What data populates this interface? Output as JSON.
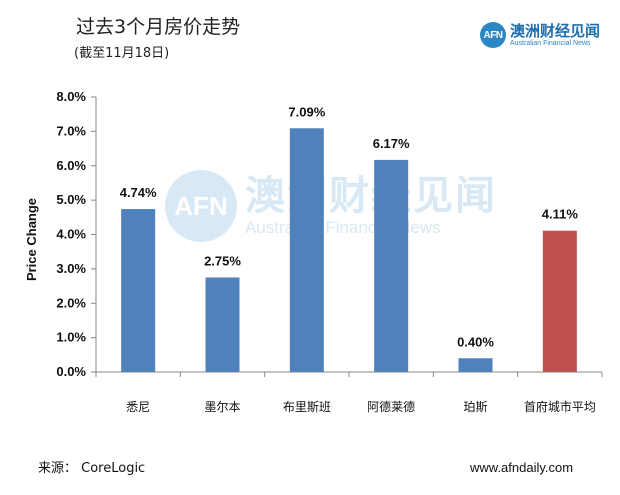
{
  "title": "过去3个月房价走势",
  "subtitle": "(截至11月18日)",
  "logo": {
    "cn": "澳洲财经见闻",
    "en": "Australian Financial News",
    "badge": "AFN"
  },
  "watermark": {
    "cn": "澳洲财经见闻",
    "en": "Australian Financial News",
    "badge": "AFN"
  },
  "source": "来源： CoreLogic",
  "website": "www.afndaily.com",
  "colors": {
    "default_bar": "#4f81bd",
    "highlight_bar": "#c0504d"
  },
  "chart_data": {
    "type": "bar",
    "title": "过去3个月房价走势",
    "subtitle": "(截至11月18日)",
    "xlabel": "",
    "ylabel": "Price Change",
    "categories": [
      "悉尼",
      "墨尔本",
      "布里斯班",
      "阿德莱德",
      "珀斯",
      "首府城市平均"
    ],
    "values": [
      4.74,
      2.75,
      7.09,
      6.17,
      0.4,
      4.11
    ],
    "data_labels": [
      "4.74%",
      "2.75%",
      "7.09%",
      "6.17%",
      "0.40%",
      "4.11%"
    ],
    "highlight_index": 5,
    "ylim": [
      0,
      8
    ],
    "yticks": [
      0,
      1,
      2,
      3,
      4,
      5,
      6,
      7,
      8
    ],
    "ytick_labels": [
      "0.0%",
      "1.0%",
      "2.0%",
      "3.0%",
      "4.0%",
      "5.0%",
      "6.0%",
      "7.0%",
      "8.0%"
    ],
    "grid": false,
    "legend": "none"
  }
}
